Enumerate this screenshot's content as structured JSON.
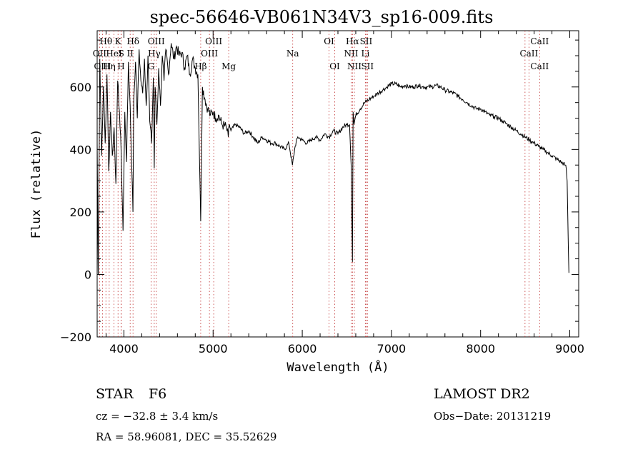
{
  "chart_data": {
    "type": "line",
    "title": "spec-56646-VB061N34V3_sp16-009.fits",
    "xlabel": "Wavelength (Å)",
    "ylabel": "Flux (relative)",
    "xlim": [
      3700,
      9100
    ],
    "ylim": [
      -200,
      780
    ],
    "xticks": [
      4000,
      5000,
      6000,
      7000,
      8000,
      9000
    ],
    "yticks": [
      -200,
      0,
      200,
      400,
      600
    ],
    "series": [
      {
        "x": [
          3700,
          3712,
          3730,
          3750,
          3770,
          3790,
          3810,
          3830,
          3850,
          3870,
          3890,
          3910,
          3930,
          3950,
          3970,
          3990,
          4010,
          4030,
          4050,
          4070,
          4090,
          4101,
          4110,
          4130,
          4150,
          4170,
          4190,
          4210,
          4230,
          4250,
          4270,
          4290,
          4310,
          4330,
          4340,
          4350,
          4370,
          4390,
          4410,
          4430,
          4450,
          4470,
          4500,
          4530,
          4560,
          4590,
          4620,
          4650,
          4680,
          4710,
          4740,
          4770,
          4800,
          4830,
          4861,
          4880,
          4910,
          4940,
          4970,
          5000,
          5030,
          5060,
          5100,
          5150,
          5170,
          5183,
          5200,
          5250,
          5300,
          5350,
          5400,
          5450,
          5500,
          5550,
          5600,
          5650,
          5700,
          5750,
          5800,
          5850,
          5890,
          5920,
          5950,
          6000,
          6050,
          6100,
          6150,
          6200,
          6250,
          6300,
          6350,
          6400,
          6450,
          6500,
          6530,
          6550,
          6563,
          6570,
          6580,
          6600,
          6650,
          6700,
          6750,
          6800,
          6850,
          6900,
          6950,
          7000,
          7050,
          7100,
          7150,
          7200,
          7250,
          7300,
          7350,
          7400,
          7450,
          7500,
          7550,
          7600,
          7650,
          7700,
          7750,
          7800,
          7850,
          7900,
          7950,
          8000,
          8050,
          8100,
          8150,
          8200,
          8250,
          8300,
          8350,
          8400,
          8450,
          8500,
          8550,
          8600,
          8650,
          8700,
          8750,
          8800,
          8850,
          8900,
          8950,
          8960,
          8970,
          8980,
          8990
        ],
        "values": [
          420,
          0,
          690,
          380,
          600,
          420,
          640,
          330,
          520,
          380,
          470,
          290,
          620,
          520,
          380,
          140,
          520,
          360,
          680,
          540,
          320,
          200,
          560,
          680,
          500,
          720,
          620,
          580,
          690,
          540,
          700,
          490,
          420,
          630,
          340,
          600,
          480,
          660,
          540,
          700,
          620,
          720,
          640,
          740,
          690,
          730,
          700,
          710,
          660,
          700,
          640,
          690,
          660,
          640,
          170,
          600,
          560,
          530,
          510,
          520,
          500,
          510,
          480,
          470,
          440,
          480,
          460,
          480,
          470,
          450,
          460,
          440,
          420,
          440,
          430,
          420,
          420,
          410,
          400,
          420,
          350,
          410,
          440,
          430,
          420,
          430,
          440,
          430,
          450,
          440,
          460,
          450,
          470,
          480,
          480,
          340,
          40,
          520,
          480,
          510,
          530,
          550,
          560,
          570,
          580,
          590,
          600,
          610,
          610,
          600,
          605,
          600,
          600,
          605,
          600,
          600,
          600,
          605,
          600,
          590,
          585,
          580,
          570,
          560,
          550,
          540,
          530,
          530,
          520,
          510,
          505,
          500,
          490,
          480,
          470,
          460,
          450,
          440,
          430,
          420,
          410,
          400,
          390,
          380,
          370,
          360,
          350,
          340,
          300,
          150,
          5
        ]
      }
    ],
    "annotations": [
      {
        "label": "Hθ",
        "x": 3798,
        "row": 1
      },
      {
        "label": "K",
        "x": 3934,
        "row": 1
      },
      {
        "label": "Hδ",
        "x": 4102,
        "row": 1
      },
      {
        "label": "OII",
        "x": 3727,
        "row": 2
      },
      {
        "label": "HeI",
        "x": 3889,
        "row": 2
      },
      {
        "label": "S",
        "x": 3970,
        "row": 2
      },
      {
        "label": "II",
        "x": 4070,
        "row": 2
      },
      {
        "label": "OIII",
        "x": 3760,
        "row": 3
      },
      {
        "label": "Hη",
        "x": 3835,
        "row": 3
      },
      {
        "label": "H",
        "x": 3968,
        "row": 3
      },
      {
        "label": "OIII",
        "x": 4363,
        "row": 1
      },
      {
        "label": "Hγ",
        "x": 4340,
        "row": 2
      },
      {
        "label": "G",
        "x": 4305,
        "row": 3
      },
      {
        "label": "OIII",
        "x": 5007,
        "row": 1
      },
      {
        "label": "OIII",
        "x": 4959,
        "row": 2
      },
      {
        "label": "Hβ",
        "x": 4861,
        "row": 3
      },
      {
        "label": "Mg",
        "x": 5175,
        "row": 3
      },
      {
        "label": "Na",
        "x": 5893,
        "row": 2
      },
      {
        "label": "OI",
        "x": 6300,
        "row": 1
      },
      {
        "label": "OI",
        "x": 6364,
        "row": 3
      },
      {
        "label": "Hα",
        "x": 6563,
        "row": 1
      },
      {
        "label": "SII",
        "x": 6716,
        "row": 1
      },
      {
        "label": "NII",
        "x": 6548,
        "row": 2
      },
      {
        "label": "Li",
        "x": 6708,
        "row": 2
      },
      {
        "label": "NII",
        "x": 6584,
        "row": 3
      },
      {
        "label": "SII",
        "x": 6731,
        "row": 3
      },
      {
        "label": "CaII",
        "x": 8662,
        "row": 1
      },
      {
        "label": "CaII",
        "x": 8542,
        "row": 2
      },
      {
        "label": "CaII",
        "x": 8662,
        "row": 3
      }
    ],
    "line_markers": [
      3727,
      3760,
      3798,
      3835,
      3889,
      3934,
      3968,
      3970,
      4070,
      4102,
      4305,
      4340,
      4363,
      4861,
      4959,
      5007,
      5175,
      5893,
      6300,
      6364,
      6548,
      6563,
      6584,
      6708,
      6716,
      6731,
      8498,
      8542,
      8662
    ],
    "grid": false
  },
  "info": {
    "object_class": "STAR",
    "subclass": "F6",
    "survey": "LAMOST DR2",
    "cz": "cz = −32.8 ± 3.4 km/s",
    "obs_date": "Obs−Date: 20131219",
    "radec": "RA =  58.96081, DEC =  35.52629"
  }
}
